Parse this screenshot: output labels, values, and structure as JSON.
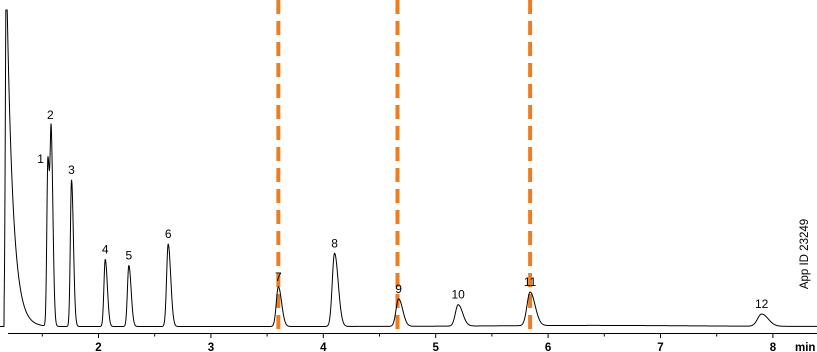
{
  "chart_data": {
    "type": "line",
    "title": "",
    "xlabel": "min",
    "ylabel": "",
    "xlim": [
      1.1,
      8.4
    ],
    "ylim": [
      0,
      100
    ],
    "x_ticks": [
      "2",
      "3",
      "4",
      "5",
      "6",
      "7",
      "8"
    ],
    "x_tick_values": [
      2,
      3,
      4,
      5,
      6,
      7,
      8
    ],
    "annotation": "App ID 23249",
    "line_color": "#000000",
    "marker_color": "#ee7d22",
    "window_markers_min": [
      3.6,
      4.66,
      5.84
    ],
    "solvent_front_min": 1.18,
    "peaks": [
      {
        "label": "1",
        "time": 1.55,
        "height": 55
      },
      {
        "label": "2",
        "time": 1.58,
        "height": 57
      },
      {
        "label": "3",
        "time": 1.76,
        "height": 48
      },
      {
        "label": "4",
        "time": 2.06,
        "height": 22
      },
      {
        "label": "5",
        "time": 2.27,
        "height": 20
      },
      {
        "label": "6",
        "time": 2.62,
        "height": 27
      },
      {
        "label": "7",
        "time": 3.6,
        "height": 13
      },
      {
        "label": "8",
        "time": 4.1,
        "height": 24
      },
      {
        "label": "9",
        "time": 4.67,
        "height": 9
      },
      {
        "label": "10",
        "time": 5.2,
        "height": 7
      },
      {
        "label": "11",
        "time": 5.84,
        "height": 11
      },
      {
        "label": "12",
        "time": 7.9,
        "height": 4
      }
    ]
  }
}
